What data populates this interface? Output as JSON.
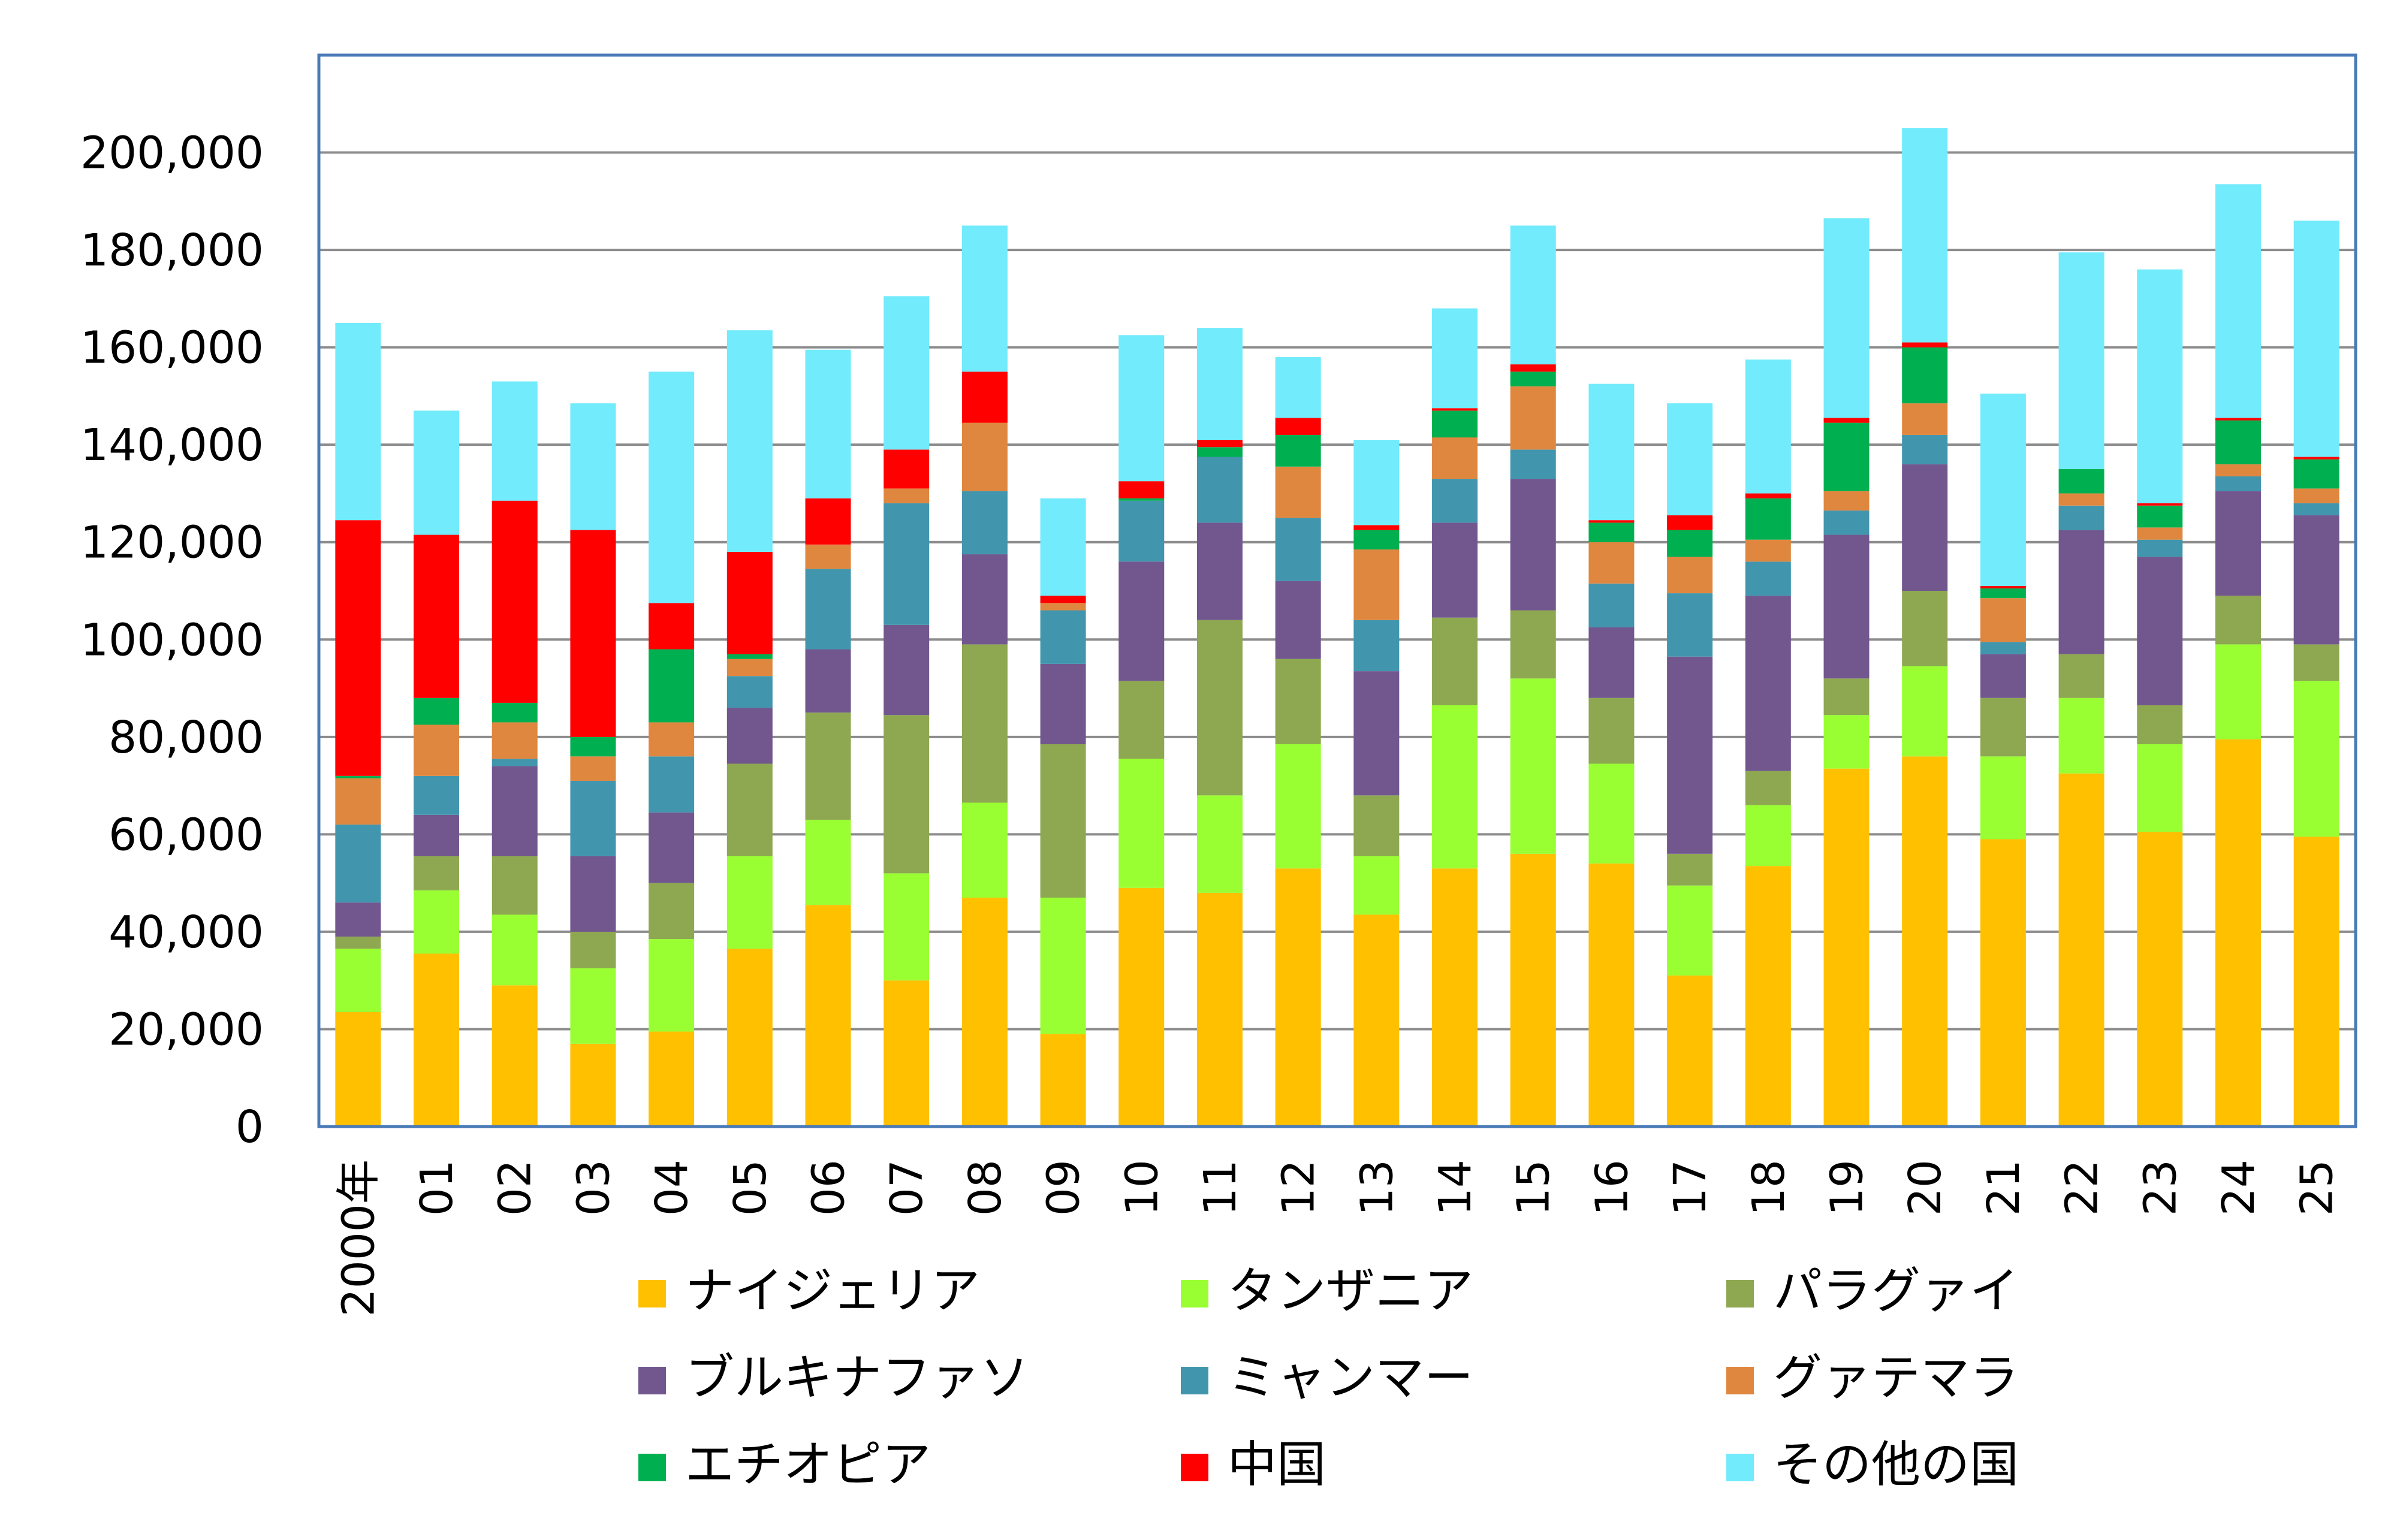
{
  "chart_data": {
    "type": "bar",
    "stacked": true,
    "title": "",
    "xlabel": "",
    "ylabel": "",
    "ylim": [
      0,
      220000
    ],
    "yticks": [
      "0",
      "20,000",
      "40,000",
      "60,000",
      "80,000",
      "100,000",
      "120,000",
      "140,000",
      "160,000",
      "180,000",
      "200,000"
    ],
    "grid": true,
    "legend_position": "bottom",
    "categories": [
      "2000年",
      "01",
      "02",
      "03",
      "04",
      "05",
      "06",
      "07",
      "08",
      "09",
      "10",
      "11",
      "12",
      "13",
      "14",
      "15",
      "16",
      "17",
      "18",
      "19",
      "20",
      "21",
      "22",
      "23",
      "24",
      "25"
    ],
    "series": [
      {
        "name": "ナイジェリア",
        "color": "#FFC000",
        "values": [
          23500,
          35500,
          29000,
          17000,
          19500,
          36500,
          45500,
          30000,
          47000,
          19000,
          49000,
          48000,
          53000,
          43500,
          53000,
          56000,
          54000,
          31000,
          53500,
          73500,
          76000,
          59000,
          72500,
          60500,
          79500,
          59500
        ]
      },
      {
        "name": "タンザニア",
        "color": "#99FF33",
        "values": [
          13000,
          13000,
          14500,
          15500,
          19000,
          19000,
          17500,
          22000,
          19500,
          28000,
          26500,
          20000,
          25500,
          12000,
          33500,
          36000,
          20500,
          18500,
          12500,
          11000,
          18500,
          17000,
          15500,
          18000,
          19500,
          32000
        ]
      },
      {
        "name": "パラグァイ",
        "color": "#8DA850",
        "values": [
          2500,
          7000,
          12000,
          7500,
          11500,
          19000,
          22000,
          32500,
          32500,
          31500,
          16000,
          36000,
          17500,
          12500,
          18000,
          14000,
          13500,
          6500,
          7000,
          7500,
          15500,
          12000,
          9000,
          8000,
          10000,
          7500
        ]
      },
      {
        "name": "ブルキナファソ",
        "color": "#72578F",
        "values": [
          7000,
          8500,
          18500,
          15500,
          14500,
          11500,
          13000,
          18500,
          18500,
          16500,
          24500,
          20000,
          16000,
          25500,
          19500,
          27000,
          14500,
          40500,
          36000,
          29500,
          26000,
          9000,
          25500,
          30500,
          21500,
          26500
        ]
      },
      {
        "name": "ミャンマー",
        "color": "#4196AE",
        "values": [
          16000,
          8000,
          1500,
          15500,
          11500,
          6500,
          16500,
          25000,
          13000,
          11000,
          12500,
          13500,
          13000,
          10500,
          9000,
          6000,
          9000,
          13000,
          7000,
          5000,
          6000,
          2500,
          5000,
          3500,
          3000,
          2500
        ]
      },
      {
        "name": "グァテマラ",
        "color": "#E0873F",
        "values": [
          9500,
          10500,
          7500,
          5000,
          7000,
          3500,
          5000,
          3000,
          14000,
          1500,
          0,
          0,
          10500,
          14500,
          8500,
          13000,
          8500,
          7500,
          4500,
          4000,
          6500,
          9000,
          2500,
          2500,
          2500,
          3000
        ]
      },
      {
        "name": "エチオピア",
        "color": "#00B050",
        "values": [
          500,
          5500,
          4000,
          4000,
          15000,
          1000,
          0,
          0,
          0,
          0,
          500,
          2000,
          6500,
          4000,
          5500,
          3000,
          4000,
          5500,
          8500,
          14000,
          11500,
          2000,
          5000,
          4500,
          9000,
          6000
        ]
      },
      {
        "name": "中国",
        "color": "#FF0000",
        "values": [
          52500,
          33500,
          41500,
          42500,
          9500,
          21000,
          9500,
          8000,
          10500,
          1500,
          3500,
          1500,
          3500,
          1000,
          500,
          1500,
          500,
          3000,
          1000,
          1000,
          1000,
          500,
          0,
          500,
          500,
          500
        ]
      },
      {
        "name": "その他の国",
        "color": "#72EBFC",
        "values": [
          40500,
          25500,
          24500,
          26000,
          47500,
          45500,
          30500,
          31500,
          30000,
          20000,
          30000,
          23000,
          12500,
          17500,
          20500,
          28500,
          28000,
          23000,
          27500,
          41000,
          44000,
          39500,
          44500,
          48000,
          48000,
          48500
        ]
      }
    ]
  }
}
